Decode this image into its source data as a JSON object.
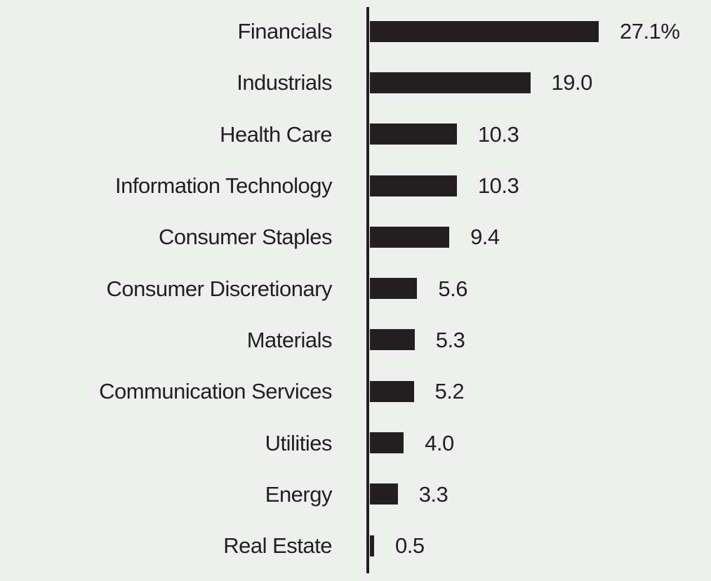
{
  "page": {
    "background_color": "#eef0ee"
  },
  "chart_data": {
    "type": "bar",
    "orientation": "horizontal",
    "categories": [
      "Financials",
      "Industrials",
      "Health Care",
      "Information Technology",
      "Consumer Staples",
      "Consumer Discretionary",
      "Materials",
      "Communication Services",
      "Utilities",
      "Energy",
      "Real Estate"
    ],
    "values": [
      27.1,
      19.0,
      10.3,
      10.3,
      9.4,
      5.6,
      5.3,
      5.2,
      4.0,
      3.3,
      0.5
    ],
    "value_labels": [
      "27.1%",
      "19.0",
      "10.3",
      "10.3",
      "9.4",
      "5.6",
      "5.3",
      "5.2",
      "4.0",
      "3.3",
      "0.5"
    ],
    "xlim": [
      0,
      27.1
    ],
    "grid": false,
    "legend": false,
    "bar_color": "#231f20",
    "axis_color": "#231f20",
    "text_color": "#231f20"
  }
}
